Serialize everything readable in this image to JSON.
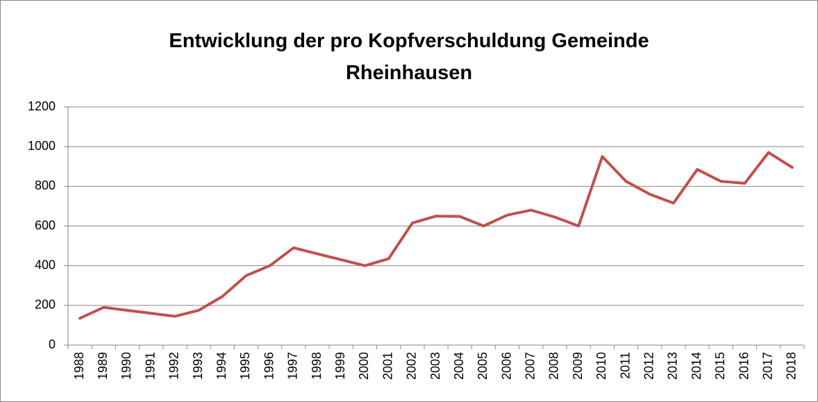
{
  "chart_data": {
    "type": "line",
    "title": "Entwicklung der pro Kopfverschuldung Gemeinde Rheinhausen",
    "categories": [
      "1988",
      "1989",
      "1990",
      "1991",
      "1992",
      "1993",
      "1994",
      "1995",
      "1996",
      "1997",
      "1998",
      "1999",
      "2000",
      "2001",
      "2002",
      "2003",
      "2004",
      "2005",
      "2006",
      "2007",
      "2008",
      "2009",
      "2010",
      "2011",
      "2012",
      "2013",
      "2014",
      "2015",
      "2016",
      "2017",
      "2018"
    ],
    "series": [
      {
        "name": "Pro-Kopf-Verschuldung",
        "color": "#c0504d",
        "values": [
          135,
          190,
          175,
          160,
          145,
          175,
          245,
          350,
          400,
          490,
          460,
          430,
          400,
          435,
          615,
          650,
          648,
          600,
          655,
          680,
          645,
          600,
          950,
          825,
          760,
          715,
          885,
          825,
          815,
          970,
          895
        ]
      }
    ],
    "ylim": [
      0,
      1200
    ],
    "yticks": [
      0,
      200,
      400,
      600,
      800,
      1000,
      1200
    ],
    "grid": true,
    "legend": false
  }
}
